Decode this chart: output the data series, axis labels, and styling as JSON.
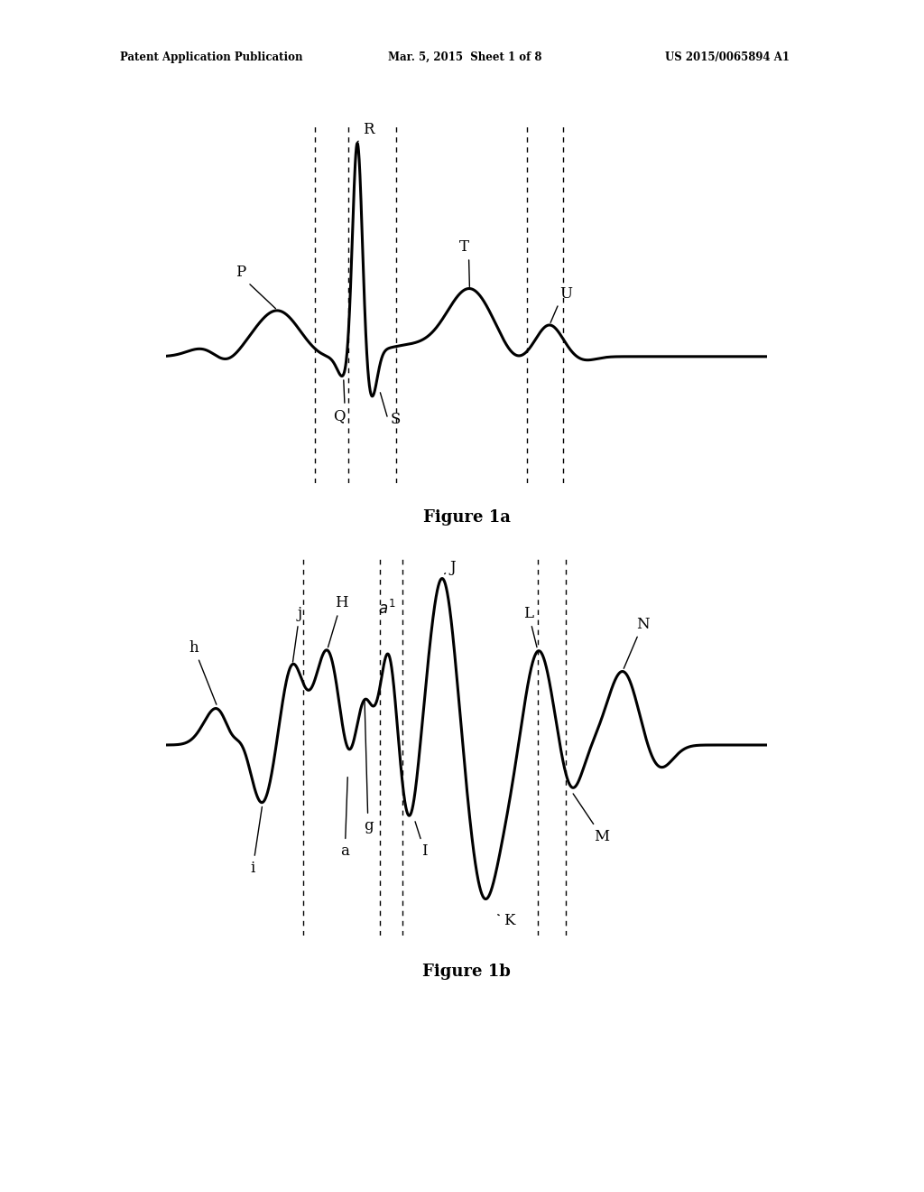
{
  "background_color": "#ffffff",
  "header_left": "Patent Application Publication",
  "header_mid": "Mar. 5, 2015  Sheet 1 of 8",
  "header_right": "US 2015/0065894 A1",
  "fig1a_caption": "Figure 1a",
  "fig1b_caption": "Figure 1b"
}
